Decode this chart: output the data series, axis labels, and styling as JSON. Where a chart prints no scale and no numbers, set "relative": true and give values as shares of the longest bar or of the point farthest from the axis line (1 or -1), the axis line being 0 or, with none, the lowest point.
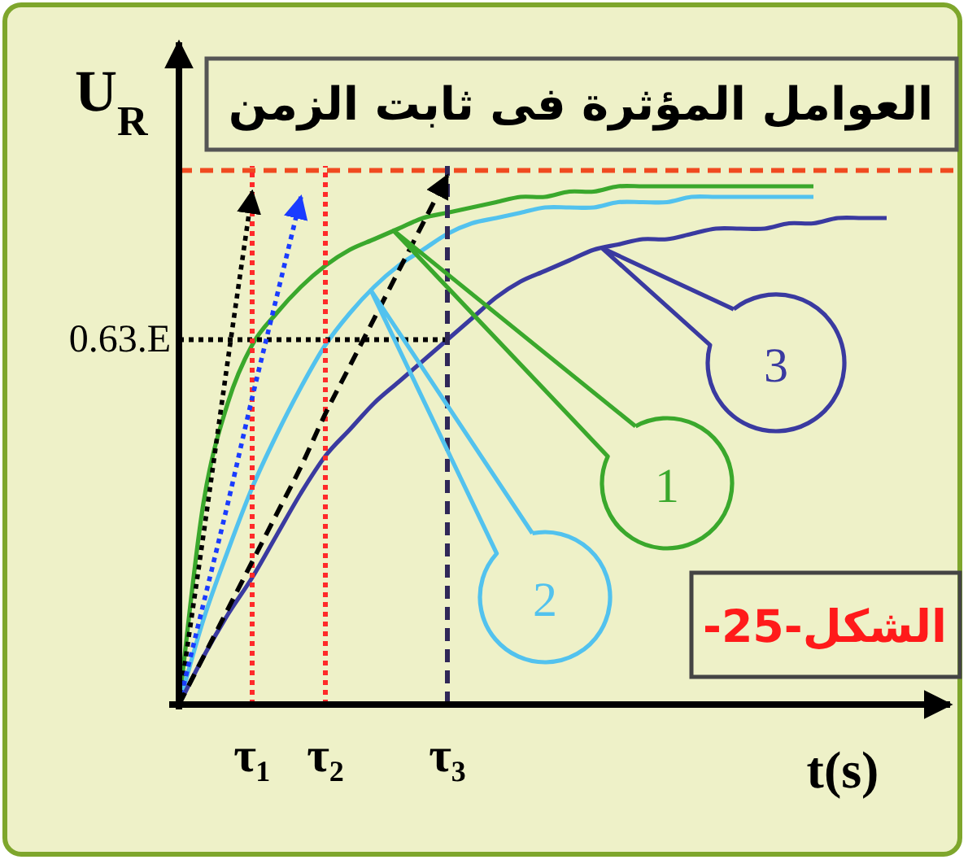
{
  "chart_data": {
    "type": "line",
    "title": "العوامل المؤثرة فى ثابت الزمن",
    "xlabel": "t(s)",
    "ylabel": "U$_{R}$",
    "relative": true,
    "categories": [
      null,
      null,
      null,
      "τ₁",
      null,
      null,
      "τ₂",
      null,
      null,
      null,
      null,
      "τ₃",
      null,
      null,
      null,
      null,
      null,
      null,
      null,
      null,
      null,
      null,
      null,
      null,
      null,
      null,
      null,
      null,
      null,
      null,
      null,
      null,
      null
    ],
    "series": [
      {
        "name": "1",
        "color": "#3aa82c",
        "values": [
          0,
          0.38,
          0.57,
          0.68,
          0.74,
          0.79,
          0.83,
          0.86,
          0.88,
          0.9,
          0.92,
          0.93,
          0.94,
          0.95,
          0.96,
          0.96,
          0.97,
          0.97,
          0.98,
          0.98,
          0.98,
          0.98,
          0.98,
          0.98,
          0.98,
          0.98,
          0.98,
          null,
          null,
          null,
          null,
          null,
          null
        ]
      },
      {
        "name": "2",
        "color": "#52c2ee",
        "values": [
          0,
          0.16,
          0.29,
          0.41,
          0.51,
          0.6,
          0.68,
          0.74,
          0.79,
          0.83,
          0.86,
          0.89,
          0.91,
          0.92,
          0.93,
          0.94,
          0.94,
          0.94,
          0.95,
          0.95,
          0.95,
          0.96,
          0.96,
          0.96,
          0.96,
          0.96,
          0.96,
          null,
          null,
          null,
          null,
          null,
          null
        ]
      },
      {
        "name": "3",
        "color": "#3a3aa0",
        "values": [
          0,
          0.09,
          0.17,
          0.24,
          0.32,
          0.4,
          0.47,
          0.52,
          0.57,
          0.61,
          0.65,
          0.69,
          0.73,
          0.77,
          0.8,
          0.82,
          0.84,
          0.86,
          0.87,
          0.88,
          0.88,
          0.89,
          0.9,
          0.9,
          0.9,
          0.91,
          0.91,
          0.92,
          0.92,
          0.92,
          null,
          null,
          null
        ]
      },
      {
        "color": "#000000",
        "line_style": "dotted",
        "values": [
          0,
          0.32,
          0.65,
          0.97,
          null,
          null,
          null,
          null,
          null,
          null,
          null,
          null,
          null,
          null,
          null,
          null,
          null,
          null,
          null,
          null,
          null,
          null,
          null,
          null,
          null,
          null,
          null,
          null,
          null,
          null,
          null,
          null,
          null
        ]
      },
      {
        "color": "#1a3cff",
        "line_style": "dotted",
        "values": [
          0,
          0.19,
          0.38,
          0.58,
          0.77,
          0.96,
          null,
          null,
          null,
          null,
          null,
          null,
          null,
          null,
          null,
          null,
          null,
          null,
          null,
          null,
          null,
          null,
          null,
          null,
          null,
          null,
          null,
          null,
          null,
          null,
          null,
          null,
          null
        ]
      },
      {
        "color": "#000000",
        "line_style": "dashed",
        "values": [
          0,
          0.09,
          0.18,
          0.27,
          0.36,
          0.45,
          0.55,
          0.64,
          0.73,
          0.82,
          0.91,
          1.0,
          null,
          null,
          null,
          null,
          null,
          null,
          null,
          null,
          null,
          null,
          null,
          null,
          null,
          null,
          null,
          null,
          null,
          null,
          null,
          null,
          null
        ]
      }
    ],
    "ref_lines": [
      {
        "axis": "y",
        "value": 1.01,
        "color": "#f04a20",
        "line_style": "dashed"
      },
      {
        "axis": "y",
        "value": 0.69,
        "label": "0.63.E",
        "color": "#000000",
        "line_style": "dotted"
      },
      {
        "axis": "x",
        "value": "τ₁",
        "color": "#ff2a2a",
        "line_style": "dotted"
      },
      {
        "axis": "x",
        "value": "τ₂",
        "color": "#ff2a2a",
        "line_style": "dotted"
      },
      {
        "axis": "x",
        "value": "τ₃",
        "color": "#302858",
        "line_style": "dashed"
      }
    ],
    "annotations": [
      "الشكل-25-"
    ]
  }
}
